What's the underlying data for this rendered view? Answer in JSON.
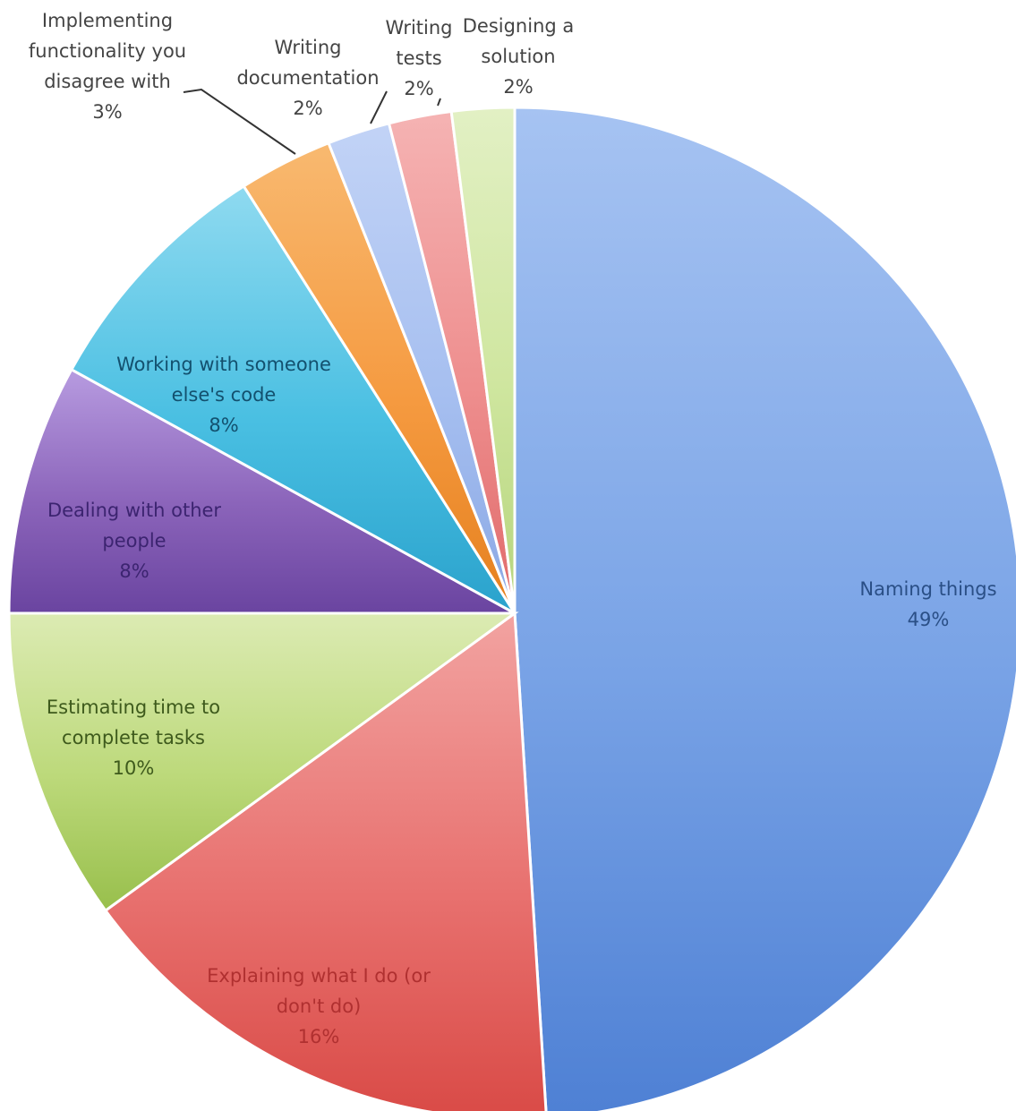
{
  "chart_data": {
    "type": "pie",
    "title": "",
    "start_angle_deg": 0,
    "direction": "clockwise",
    "slices": [
      {
        "label_lines": [
          "Naming things",
          "49%"
        ],
        "value": 49,
        "color": "#79a3e6",
        "color_light": "#a6c3f2",
        "color_dark": "#4e80d4",
        "text_color": "#2a4f86"
      },
      {
        "label_lines": [
          "Explaining what I do (or",
          "don't do)",
          "16%"
        ],
        "value": 16,
        "color": "#e8716f",
        "color_light": "#f2a3a1",
        "color_dark": "#d94a46",
        "text_color": "#b03030"
      },
      {
        "label_lines": [
          "Estimating time to",
          "complete tasks",
          "10%"
        ],
        "value": 10,
        "color": "#bcd97a",
        "color_light": "#dcebb3",
        "color_dark": "#98bf4c",
        "text_color": "#3e5a1c"
      },
      {
        "label_lines": [
          "Dealing with other",
          "people",
          "8%"
        ],
        "value": 8,
        "color": "#8b64ba",
        "color_light": "#b79be0",
        "color_dark": "#6a44a0",
        "text_color": "#3c2470"
      },
      {
        "label_lines": [
          "Working with someone",
          "else's code",
          "8%"
        ],
        "value": 8,
        "color": "#49bfe2",
        "color_light": "#8fdaf0",
        "color_dark": "#2aa2cc",
        "text_color": "#13506e"
      },
      {
        "label_lines": [
          "Implementing",
          "functionality you",
          "disagree with",
          "3%"
        ],
        "value": 3,
        "color": "#f59a40",
        "color_light": "#f8b970",
        "color_dark": "#e5801e",
        "text_color": "#444444"
      },
      {
        "label_lines": [
          "Writing",
          "documentation",
          "2%"
        ],
        "value": 2,
        "color": "#a6bff0",
        "color_light": "#c2d3f6",
        "color_dark": "#8aa8e4",
        "text_color": "#444444"
      },
      {
        "label_lines": [
          "Writing",
          "tests",
          "2%"
        ],
        "value": 2,
        "color": "#ee8e8e",
        "color_light": "#f5b3b3",
        "color_dark": "#e06a6a",
        "text_color": "#444444"
      },
      {
        "label_lines": [
          "Designing a",
          "solution",
          "2%"
        ],
        "value": 2,
        "color": "#cfe69f",
        "color_light": "#e2f0c4",
        "color_dark": "#b5d47c",
        "text_color": "#444444"
      }
    ]
  }
}
